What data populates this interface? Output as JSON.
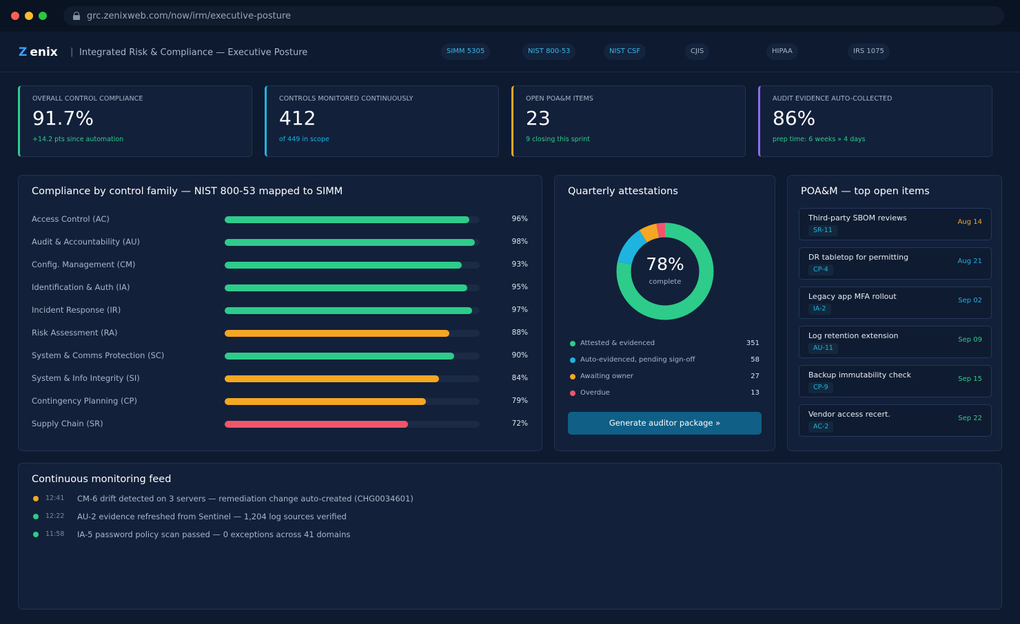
{
  "browser": {
    "url": "grc.zenixweb.com/now/irm/executive-posture"
  },
  "header": {
    "logo_mark": "Z",
    "logo_text": "enix",
    "separator": "|",
    "title": "Integrated Risk & Compliance — Executive Posture",
    "frameworks": [
      {
        "label": "SIMM 5305",
        "active": true
      },
      {
        "label": "NIST 800-53",
        "active": true
      },
      {
        "label": "NIST CSF",
        "active": true
      },
      {
        "label": "CJIS",
        "active": false
      },
      {
        "label": "HIPAA",
        "active": false
      },
      {
        "label": "IRS 1075",
        "active": false
      }
    ]
  },
  "kpis": [
    {
      "label": "OVERALL CONTROL COMPLIANCE",
      "value": "91.7%",
      "sub": "+14.2 pts since automation",
      "accent": "#2ecc8a"
    },
    {
      "label": "CONTROLS MONITORED CONTINUOUSLY",
      "value": "412",
      "sub": "of 449 in scope",
      "accent": "#1fb3e0"
    },
    {
      "label": "OPEN POA&M ITEMS",
      "value": "23",
      "sub": "9 closing this sprint",
      "accent": "#f5a623"
    },
    {
      "label": "AUDIT EVIDENCE AUTO-COLLECTED",
      "value": "86%",
      "sub": "prep time: 6 weeks » 4 days",
      "accent": "#8a6cf0"
    }
  ],
  "compliance": {
    "title": "Compliance by control family — NIST 800-53 mapped to SIMM",
    "families": [
      {
        "label": "Access Control (AC)",
        "value": 96,
        "display": "96%",
        "color": "#2ecc8a"
      },
      {
        "label": "Audit & Accountability (AU)",
        "value": 98,
        "display": "98%",
        "color": "#2ecc8a"
      },
      {
        "label": "Config. Management (CM)",
        "value": 93,
        "display": "93%",
        "color": "#2ecc8a"
      },
      {
        "label": "Identification & Auth (IA)",
        "value": 95,
        "display": "95%",
        "color": "#2ecc8a"
      },
      {
        "label": "Incident Response (IR)",
        "value": 97,
        "display": "97%",
        "color": "#2ecc8a"
      },
      {
        "label": "Risk Assessment (RA)",
        "value": 88,
        "display": "88%",
        "color": "#f5a623"
      },
      {
        "label": "System & Comms Protection (SC)",
        "value": 90,
        "display": "90%",
        "color": "#2ecc8a"
      },
      {
        "label": "System & Info Integrity (SI)",
        "value": 84,
        "display": "84%",
        "color": "#f5a623"
      },
      {
        "label": "Contingency Planning (CP)",
        "value": 79,
        "display": "79%",
        "color": "#f5a623"
      },
      {
        "label": "Supply Chain (SR)",
        "value": 72,
        "display": "72%",
        "color": "#f0566a"
      }
    ]
  },
  "attestations": {
    "title": "Quarterly attestations",
    "percent": "78%",
    "percent_label": "complete",
    "segments": [
      {
        "label": "Attested & evidenced",
        "count": 351,
        "color": "#2ecc8a"
      },
      {
        "label": "Auto-evidenced, pending sign-off",
        "count": 58,
        "color": "#1fb3e0"
      },
      {
        "label": "Awaiting owner",
        "count": 27,
        "color": "#f5a623"
      },
      {
        "label": "Overdue",
        "count": 13,
        "color": "#f0566a"
      }
    ],
    "button_label": "Generate auditor package  »"
  },
  "poam": {
    "title": "POA&M — top open items",
    "items": [
      {
        "title": "Third-party SBOM reviews",
        "tag": "SR-11",
        "date": "Aug 14",
        "date_color": "orange"
      },
      {
        "title": "DR tabletop for permitting",
        "tag": "CP-4",
        "date": "Aug 21",
        "date_color": "blue"
      },
      {
        "title": "Legacy app MFA rollout",
        "tag": "IA-2",
        "date": "Sep 02",
        "date_color": "blue"
      },
      {
        "title": "Log retention extension",
        "tag": "AU-11",
        "date": "Sep 09",
        "date_color": "green"
      },
      {
        "title": "Backup immutability check",
        "tag": "CP-9",
        "date": "Sep 15",
        "date_color": "green"
      },
      {
        "title": "Vendor access recert.",
        "tag": "AC-2",
        "date": "Sep 22",
        "date_color": "green"
      }
    ]
  },
  "feed": {
    "title": "Continuous monitoring feed",
    "events": [
      {
        "time": "12:41",
        "text": "CM-6 drift detected on 3 servers — remediation change auto-created (CHG0034601)",
        "color": "#f5a623"
      },
      {
        "time": "12:22",
        "text": "AU-2 evidence refreshed from Sentinel — 1,204 log sources verified",
        "color": "#2ecc8a"
      },
      {
        "time": "11:58",
        "text": "IA-5 password policy scan passed — 0 exceptions across 41 domains",
        "color": "#2ecc8a"
      }
    ]
  }
}
